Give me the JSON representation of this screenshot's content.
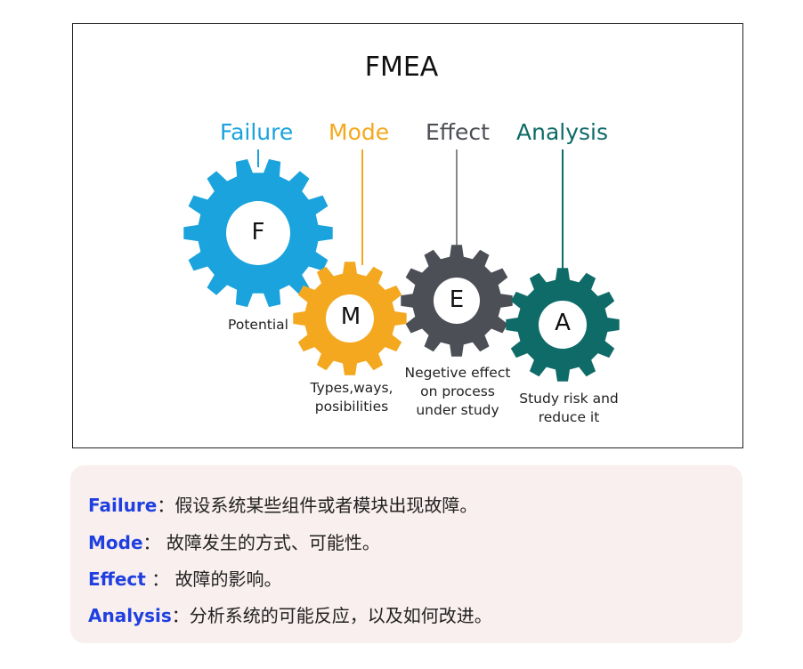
{
  "title": "FMEA",
  "headings": {
    "failure": "Failure",
    "mode": "Mode",
    "effect": "Effect",
    "analysis": "Analysis"
  },
  "gears": {
    "f": {
      "letter": "F",
      "color": "#1aa3dc"
    },
    "m": {
      "letter": "M",
      "color": "#f4a81f"
    },
    "e": {
      "letter": "E",
      "color": "#4c4f55"
    },
    "a": {
      "letter": "A",
      "color": "#0f6b68"
    }
  },
  "captions": {
    "failure": "Potential",
    "mode_line1": "Types,ways,",
    "mode_line2": "posibilities",
    "effect_line1": "Negetive effect",
    "effect_line2": "on process",
    "effect_line3": "under study",
    "analysis_line1": "Study risk and",
    "analysis_line2": "reduce it"
  },
  "heading_colors": {
    "failure": "#1aa3dc",
    "mode": "#f4a81f",
    "effect": "#4c4f55",
    "analysis": "#0f6b68"
  },
  "definitions": [
    {
      "term": "Failure",
      "sep": "：",
      "text": "假设系统某些组件或者模块出现故障。"
    },
    {
      "term": "Mode",
      "sep": "： ",
      "text": "故障发生的方式、可能性。"
    },
    {
      "term": "Effect",
      "sep": " ： ",
      "text": "故障的影响。"
    },
    {
      "term": "Analysis",
      "sep": "：",
      "text": "分析系统的可能反应，以及如何改进。"
    }
  ]
}
